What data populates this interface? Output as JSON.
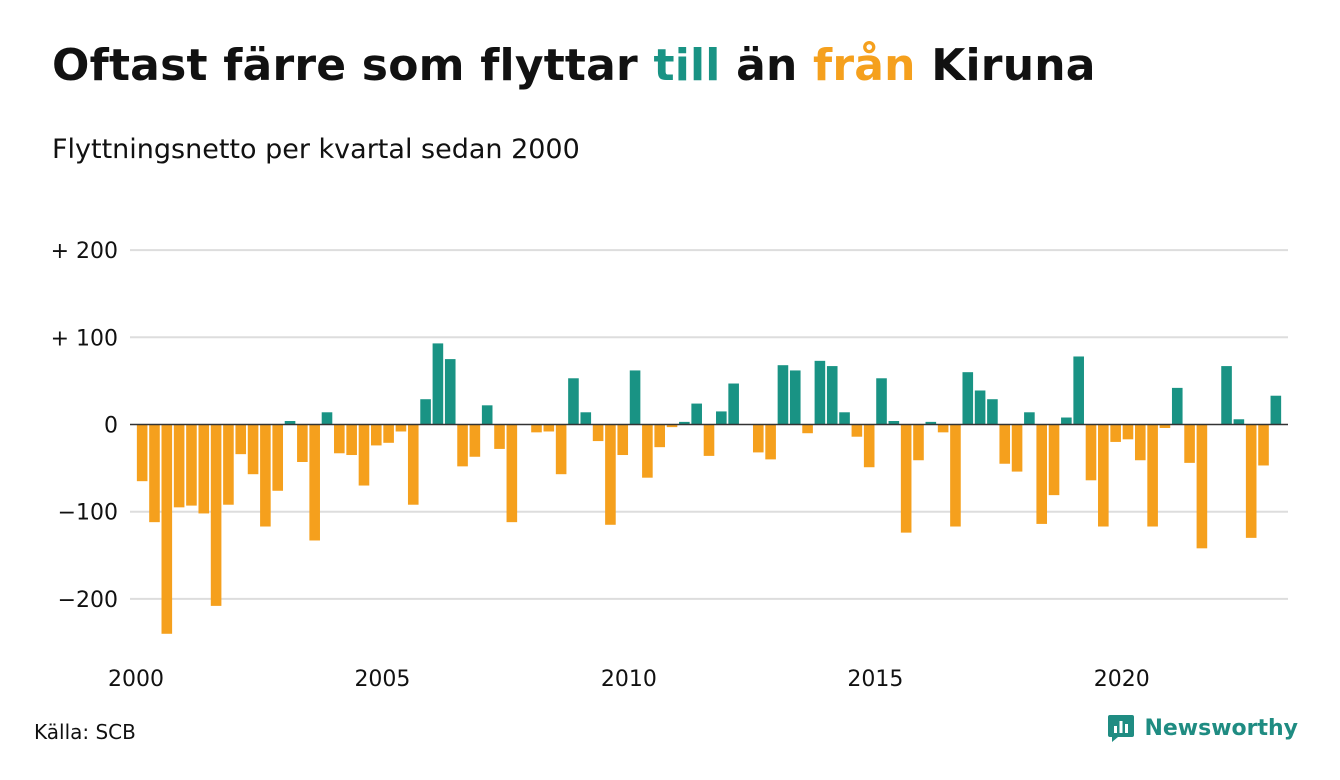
{
  "title": {
    "parts": [
      {
        "text": "Oftast färre som flyttar ",
        "color": "#111111"
      },
      {
        "text": "till",
        "color": "#199384"
      },
      {
        "text": " än ",
        "color": "#111111"
      },
      {
        "text": "från",
        "color": "#f5a01d"
      },
      {
        "text": " Kiruna",
        "color": "#111111"
      }
    ]
  },
  "subtitle": "Flyttningsnetto per kvartal sedan 2000",
  "source": "Källa: SCB",
  "brand": {
    "name": "Newsworthy",
    "icon": "newsworthy-logo-icon",
    "color": "#1f8c82"
  },
  "chart_data": {
    "type": "bar",
    "title": "Oftast färre som flyttar till än från Kiruna",
    "subtitle": "Flyttningsnetto per kvartal sedan 2000",
    "xlabel": "",
    "ylabel": "",
    "x_ticks": [
      {
        "year": 2000,
        "label": "2000"
      },
      {
        "year": 2005,
        "label": "2005"
      },
      {
        "year": 2010,
        "label": "2010"
      },
      {
        "year": 2015,
        "label": "2015"
      },
      {
        "year": 2020,
        "label": "2020"
      }
    ],
    "y_ticks": [
      {
        "value": 200,
        "label": "+ 200"
      },
      {
        "value": 100,
        "label": "+ 100"
      },
      {
        "value": 0,
        "label": "0"
      },
      {
        "value": -100,
        "label": "−100"
      },
      {
        "value": -200,
        "label": "−200"
      }
    ],
    "ylim": [
      -240,
      200
    ],
    "xlim_years": [
      2000,
      2023.25
    ],
    "grid": true,
    "colors": {
      "positive": "#199384",
      "negative": "#f5a01d",
      "grid": "#dddddd",
      "zero_line": "#333333"
    },
    "series": [
      {
        "quarters": [
          "2000Q1",
          "2000Q2",
          "2000Q3",
          "2000Q4",
          "2001Q1",
          "2001Q2",
          "2001Q3",
          "2001Q4",
          "2002Q1",
          "2002Q2",
          "2002Q3",
          "2002Q4",
          "2003Q1",
          "2003Q2",
          "2003Q3",
          "2003Q4",
          "2004Q1",
          "2004Q2",
          "2004Q3",
          "2004Q4",
          "2005Q1",
          "2005Q2",
          "2005Q3",
          "2005Q4",
          "2006Q1",
          "2006Q2",
          "2006Q3",
          "2006Q4",
          "2007Q1",
          "2007Q2",
          "2007Q3",
          "2007Q4",
          "2008Q1",
          "2008Q2",
          "2008Q3",
          "2008Q4",
          "2009Q1",
          "2009Q2",
          "2009Q3",
          "2009Q4",
          "2010Q1",
          "2010Q2",
          "2010Q3",
          "2010Q4",
          "2011Q1",
          "2011Q2",
          "2011Q3",
          "2011Q4",
          "2012Q1",
          "2012Q2",
          "2012Q3",
          "2012Q4",
          "2013Q1",
          "2013Q2",
          "2013Q3",
          "2013Q4",
          "2014Q1",
          "2014Q2",
          "2014Q3",
          "2014Q4",
          "2015Q1",
          "2015Q2",
          "2015Q3",
          "2015Q4",
          "2016Q1",
          "2016Q2",
          "2016Q3",
          "2016Q4",
          "2017Q1",
          "2017Q2",
          "2017Q3",
          "2017Q4",
          "2018Q1",
          "2018Q2",
          "2018Q3",
          "2018Q4",
          "2019Q1",
          "2019Q2",
          "2019Q3",
          "2019Q4",
          "2020Q1",
          "2020Q2",
          "2020Q3",
          "2020Q4",
          "2021Q1",
          "2021Q2",
          "2021Q3",
          "2021Q4",
          "2022Q1",
          "2022Q2",
          "2022Q3",
          "2022Q4",
          "2023Q1"
        ],
        "values": [
          -65,
          -112,
          -240,
          -95,
          -93,
          -102,
          -208,
          -92,
          -34,
          -57,
          -117,
          -76,
          4,
          -43,
          -133,
          14,
          -33,
          -35,
          -70,
          -24,
          -21,
          -8,
          -92,
          29,
          93,
          75,
          -48,
          -37,
          22,
          -28,
          -112,
          0,
          -9,
          -8,
          -57,
          53,
          14,
          -19,
          -115,
          -35,
          62,
          -61,
          -26,
          -3,
          3,
          24,
          -36,
          15,
          47,
          0,
          -32,
          -40,
          68,
          62,
          -10,
          73,
          67,
          14,
          -14,
          -49,
          53,
          4,
          -124,
          -41,
          3,
          -9,
          -117,
          60,
          39,
          29,
          -45,
          -54,
          14,
          -114,
          -81,
          8,
          78,
          -64,
          -117,
          -20,
          -17,
          -41,
          -117,
          -4,
          42,
          -44,
          -142,
          0,
          67,
          6,
          -130,
          -47,
          33
        ]
      }
    ]
  }
}
